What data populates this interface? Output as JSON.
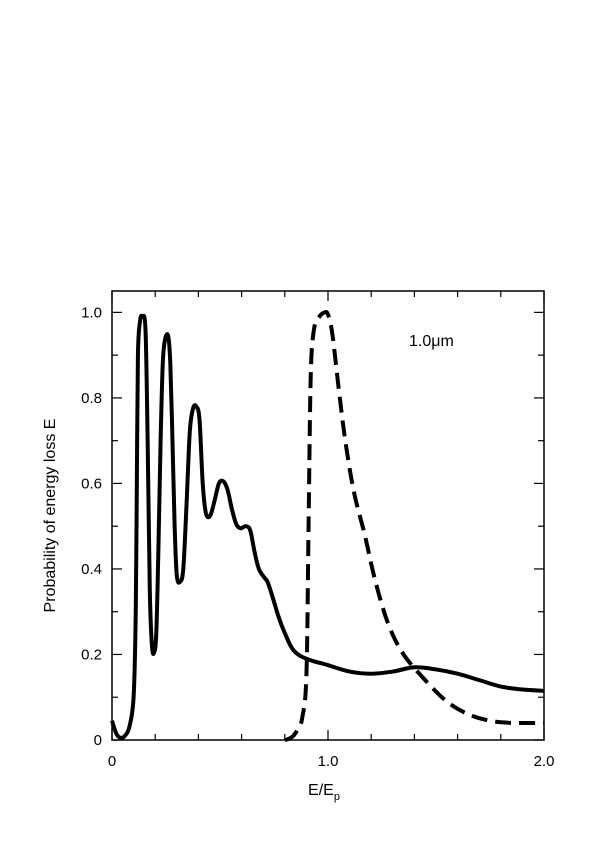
{
  "chart_data": {
    "type": "line",
    "xlabel": "E/E",
    "xlabel_sub": "p",
    "ylabel": "Probability of energy loss E",
    "annotation": "1.0μm",
    "xlim": [
      0,
      2.0
    ],
    "ylim": [
      0,
      1.05
    ],
    "x_ticks": [
      {
        "value": 0,
        "label": "0"
      },
      {
        "value": 1.0,
        "label": "1.0"
      },
      {
        "value": 2.0,
        "label": "2.0"
      }
    ],
    "y_ticks": [
      {
        "value": 0,
        "label": "0"
      },
      {
        "value": 0.2,
        "label": "0.2"
      },
      {
        "value": 0.4,
        "label": "0.4"
      },
      {
        "value": 0.6,
        "label": "0.6"
      },
      {
        "value": 0.8,
        "label": "0.8"
      },
      {
        "value": 1.0,
        "label": "1.0"
      }
    ],
    "x_minor_step": 0.2,
    "y_minor_step": 0.1,
    "grid": false,
    "series": [
      {
        "style": "solid",
        "color": "#000000",
        "points": [
          [
            0.0,
            0.045
          ],
          [
            0.02,
            0.015
          ],
          [
            0.04,
            0.005
          ],
          [
            0.06,
            0.01
          ],
          [
            0.08,
            0.03
          ],
          [
            0.1,
            0.1
          ],
          [
            0.11,
            0.3
          ],
          [
            0.115,
            0.6
          ],
          [
            0.12,
            0.9
          ],
          [
            0.13,
            0.98
          ],
          [
            0.14,
            0.99
          ],
          [
            0.155,
            0.96
          ],
          [
            0.165,
            0.7
          ],
          [
            0.175,
            0.35
          ],
          [
            0.185,
            0.22
          ],
          [
            0.195,
            0.205
          ],
          [
            0.205,
            0.25
          ],
          [
            0.215,
            0.45
          ],
          [
            0.225,
            0.7
          ],
          [
            0.235,
            0.88
          ],
          [
            0.245,
            0.935
          ],
          [
            0.26,
            0.945
          ],
          [
            0.27,
            0.88
          ],
          [
            0.28,
            0.7
          ],
          [
            0.29,
            0.5
          ],
          [
            0.3,
            0.385
          ],
          [
            0.315,
            0.37
          ],
          [
            0.33,
            0.4
          ],
          [
            0.345,
            0.55
          ],
          [
            0.36,
            0.72
          ],
          [
            0.375,
            0.775
          ],
          [
            0.39,
            0.78
          ],
          [
            0.405,
            0.75
          ],
          [
            0.42,
            0.6
          ],
          [
            0.435,
            0.53
          ],
          [
            0.455,
            0.525
          ],
          [
            0.475,
            0.56
          ],
          [
            0.495,
            0.6
          ],
          [
            0.515,
            0.605
          ],
          [
            0.535,
            0.585
          ],
          [
            0.555,
            0.54
          ],
          [
            0.575,
            0.505
          ],
          [
            0.595,
            0.495
          ],
          [
            0.62,
            0.5
          ],
          [
            0.64,
            0.49
          ],
          [
            0.66,
            0.44
          ],
          [
            0.68,
            0.4
          ],
          [
            0.705,
            0.38
          ],
          [
            0.72,
            0.37
          ],
          [
            0.74,
            0.34
          ],
          [
            0.77,
            0.29
          ],
          [
            0.8,
            0.25
          ],
          [
            0.84,
            0.21
          ],
          [
            0.9,
            0.19
          ],
          [
            1.0,
            0.175
          ],
          [
            1.1,
            0.16
          ],
          [
            1.2,
            0.155
          ],
          [
            1.3,
            0.16
          ],
          [
            1.4,
            0.17
          ],
          [
            1.5,
            0.165
          ],
          [
            1.6,
            0.155
          ],
          [
            1.7,
            0.14
          ],
          [
            1.8,
            0.125
          ],
          [
            1.9,
            0.118
          ],
          [
            2.0,
            0.115
          ]
        ]
      },
      {
        "style": "dashed",
        "color": "#000000",
        "points": [
          [
            0.8,
            0.0
          ],
          [
            0.82,
            0.003
          ],
          [
            0.84,
            0.01
          ],
          [
            0.86,
            0.025
          ],
          [
            0.88,
            0.05
          ],
          [
            0.9,
            0.15
          ],
          [
            0.91,
            0.5
          ],
          [
            0.92,
            0.85
          ],
          [
            0.935,
            0.96
          ],
          [
            0.96,
            0.99
          ],
          [
            0.985,
            1.0
          ],
          [
            1.0,
            0.995
          ],
          [
            1.02,
            0.95
          ],
          [
            1.05,
            0.82
          ],
          [
            1.08,
            0.7
          ],
          [
            1.12,
            0.58
          ],
          [
            1.17,
            0.48
          ],
          [
            1.22,
            0.37
          ],
          [
            1.28,
            0.27
          ],
          [
            1.35,
            0.2
          ],
          [
            1.45,
            0.14
          ],
          [
            1.55,
            0.09
          ],
          [
            1.65,
            0.06
          ],
          [
            1.75,
            0.045
          ],
          [
            1.85,
            0.04
          ],
          [
            2.0,
            0.04
          ]
        ]
      }
    ]
  }
}
